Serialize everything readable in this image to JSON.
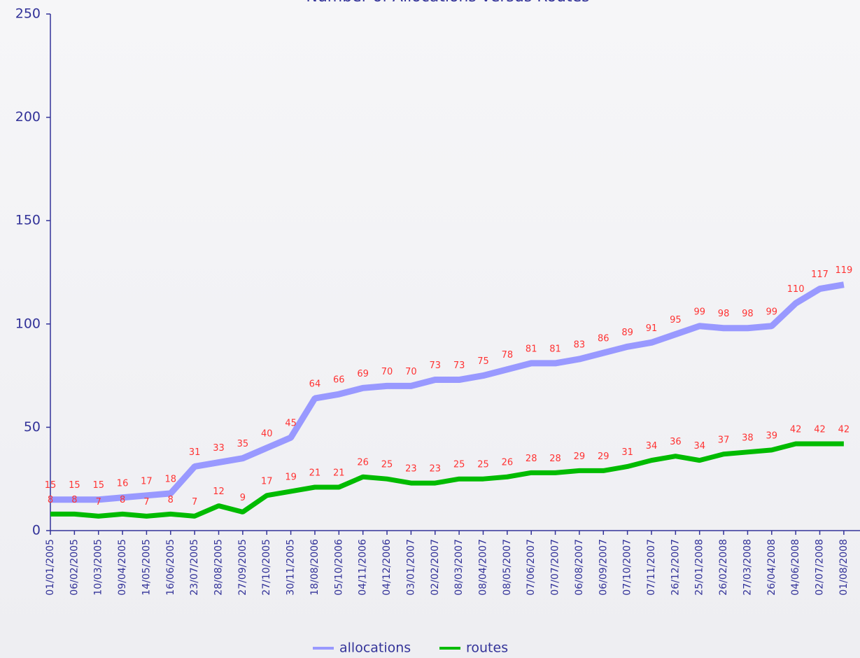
{
  "chart_data": {
    "type": "line",
    "title": "Number of Allocations versus Routes",
    "categories": [
      "01/01/2005",
      "06/02/2005",
      "10/03/2005",
      "09/04/2005",
      "14/05/2005",
      "16/06/2005",
      "23/07/2005",
      "28/08/2005",
      "27/09/2005",
      "27/10/2005",
      "30/11/2005",
      "18/08/2006",
      "05/10/2006",
      "04/11/2006",
      "04/12/2006",
      "03/01/2007",
      "02/02/2007",
      "08/03/2007",
      "08/04/2007",
      "08/05/2007",
      "07/06/2007",
      "07/07/2007",
      "06/08/2007",
      "06/09/2007",
      "07/10/2007",
      "07/11/2007",
      "26/12/2007",
      "25/01/2008",
      "26/02/2008",
      "27/03/2008",
      "26/04/2008",
      "04/06/2008",
      "02/07/2008",
      "01/08/2008"
    ],
    "series": [
      {
        "name": "allocations",
        "color": "#9999ff",
        "values": [
          15,
          15,
          15,
          16,
          17,
          18,
          31,
          33,
          35,
          40,
          45,
          64,
          66,
          69,
          70,
          70,
          73,
          73,
          75,
          78,
          81,
          81,
          83,
          86,
          89,
          91,
          95,
          99,
          98,
          98,
          99,
          110,
          117,
          119
        ]
      },
      {
        "name": "routes",
        "color": "#00bb00",
        "values": [
          8,
          8,
          7,
          8,
          7,
          8,
          7,
          12,
          9,
          17,
          19,
          21,
          21,
          26,
          25,
          23,
          23,
          25,
          25,
          26,
          28,
          28,
          29,
          29,
          31,
          34,
          36,
          34,
          37,
          38,
          39,
          42,
          42,
          42
        ]
      }
    ],
    "ylim": [
      0,
      250
    ],
    "yticks": [
      0,
      50,
      100,
      150,
      200,
      250
    ],
    "legend": "bottom"
  }
}
